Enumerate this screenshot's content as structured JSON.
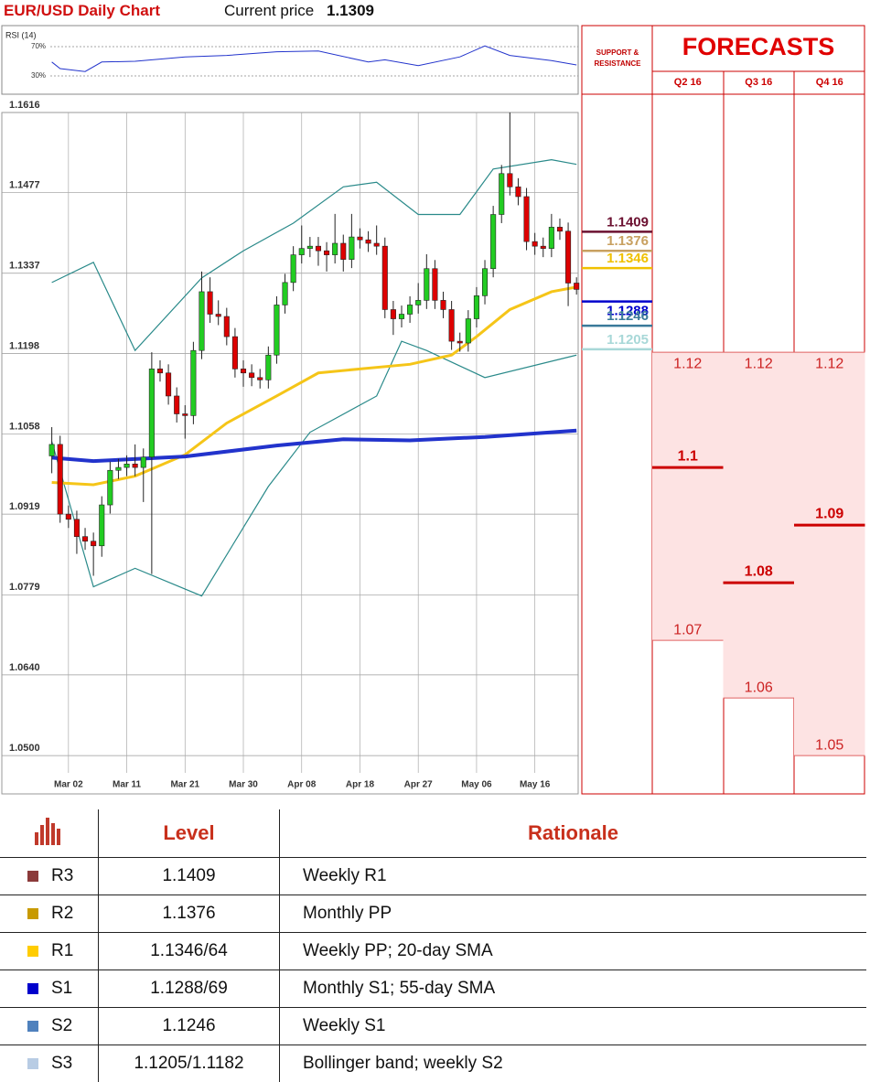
{
  "header": {
    "title": "EUR/USD Daily Chart",
    "price_label": "Current price",
    "price": 1.1309
  },
  "chart_data": [
    {
      "type": "candlestick",
      "xlim": [
        -6,
        63.2
      ],
      "ylim": [
        1.047,
        1.1616
      ],
      "xticks": [
        {
          "value": 2,
          "label": "Mar 02"
        },
        {
          "value": 9,
          "label": "Mar 11"
        },
        {
          "value": 16,
          "label": "Mar 21"
        },
        {
          "value": 23,
          "label": "Mar 30"
        },
        {
          "value": 30,
          "label": "Apr 08"
        },
        {
          "value": 37,
          "label": "Apr 18"
        },
        {
          "value": 44,
          "label": "Apr 27"
        },
        {
          "value": 51,
          "label": "May 06"
        },
        {
          "value": 58,
          "label": "May 16"
        }
      ],
      "yticks": [
        1.1616,
        1.1477,
        1.1337,
        1.1198,
        1.1058,
        1.0919,
        1.0779,
        {
          "value": 1.064,
          "label": "1.0640"
        },
        {
          "value": 1.05,
          "label": "1.0500"
        }
      ],
      "grid": true,
      "up_color": "#22cc22",
      "down_color": "#dd0000",
      "open": [
        1.102,
        1.104,
        1.0919,
        1.091,
        1.088,
        1.0872,
        1.0864,
        1.0935,
        1.0995,
        1.1,
        1.1006,
        1.1,
        1.1018,
        1.1171,
        1.1164,
        1.1124,
        1.1093,
        1.109,
        1.1203,
        1.1305,
        1.1266,
        1.1262,
        1.1227,
        1.1171,
        1.1164,
        1.1156,
        1.1152,
        1.1195,
        1.1282,
        1.1321,
        1.1369,
        1.138,
        1.1384,
        1.1376,
        1.1369,
        1.1389,
        1.1361,
        1.14,
        1.1395,
        1.1389,
        1.1384,
        1.1274,
        1.1258,
        1.1266,
        1.1282,
        1.129,
        1.1345,
        1.129,
        1.1274,
        1.1219,
        1.1216,
        1.1258,
        1.1298,
        1.1345,
        1.1439,
        1.151,
        1.1487,
        1.147,
        1.1392,
        1.1384,
        1.138,
        1.1417,
        1.141,
        1.132
      ],
      "close": [
        1.104,
        1.0919,
        1.091,
        1.088,
        1.0872,
        1.0864,
        1.0935,
        1.0995,
        1.1,
        1.1006,
        1.1,
        1.1018,
        1.1171,
        1.1164,
        1.1124,
        1.1093,
        1.109,
        1.1203,
        1.1305,
        1.1266,
        1.1262,
        1.1227,
        1.1171,
        1.1164,
        1.1156,
        1.1152,
        1.1195,
        1.1282,
        1.1321,
        1.1369,
        1.138,
        1.1384,
        1.1376,
        1.1369,
        1.1389,
        1.1361,
        1.14,
        1.1395,
        1.1389,
        1.1384,
        1.1274,
        1.1258,
        1.1266,
        1.1282,
        1.129,
        1.1345,
        1.129,
        1.1274,
        1.1219,
        1.1216,
        1.1258,
        1.1298,
        1.1345,
        1.1439,
        1.151,
        1.1487,
        1.147,
        1.1392,
        1.1384,
        1.138,
        1.1417,
        1.141,
        1.132,
        1.1309
      ],
      "high": [
        1.107,
        1.1055,
        1.0934,
        1.0925,
        1.0895,
        1.0887,
        1.095,
        1.101,
        1.1015,
        1.1021,
        1.104,
        1.1033,
        1.12,
        1.1186,
        1.1179,
        1.1139,
        1.1108,
        1.1218,
        1.134,
        1.133,
        1.129,
        1.1277,
        1.1242,
        1.1186,
        1.1179,
        1.1171,
        1.121,
        1.1297,
        1.1336,
        1.1384,
        1.142,
        1.14,
        1.14,
        1.1391,
        1.144,
        1.1404,
        1.144,
        1.1415,
        1.141,
        1.142,
        1.1399,
        1.1289,
        1.1281,
        1.1297,
        1.132,
        1.137,
        1.136,
        1.1305,
        1.1289,
        1.1234,
        1.1273,
        1.1313,
        1.136,
        1.1454,
        1.1525,
        1.1616,
        1.1502,
        1.1485,
        1.1407,
        1.1399,
        1.144,
        1.1432,
        1.1425,
        1.133
      ],
      "low": [
        1.099,
        1.0904,
        1.0895,
        1.085,
        1.0857,
        1.0812,
        1.0845,
        1.092,
        1.098,
        1.0985,
        1.0985,
        1.094,
        1.0815,
        1.1149,
        1.1109,
        1.1078,
        1.105,
        1.1075,
        1.1188,
        1.1251,
        1.1247,
        1.1212,
        1.1156,
        1.114,
        1.1141,
        1.1137,
        1.1137,
        1.118,
        1.1267,
        1.1306,
        1.1354,
        1.1365,
        1.135,
        1.134,
        1.1354,
        1.134,
        1.1346,
        1.138,
        1.1374,
        1.1369,
        1.1259,
        1.123,
        1.1243,
        1.1251,
        1.1267,
        1.1275,
        1.1275,
        1.1259,
        1.1204,
        1.1201,
        1.1201,
        1.1243,
        1.1283,
        1.133,
        1.1424,
        1.1472,
        1.1455,
        1.1377,
        1.1369,
        1.1365,
        1.1365,
        1.1395,
        1.128,
        1.13
      ],
      "lines": [
        {
          "color": "#2a8a8a",
          "width": 1.2,
          "x": [
            0,
            5,
            10,
            18,
            23,
            29,
            35,
            39,
            44,
            49,
            53,
            60,
            63
          ],
          "values": [
            1.1321,
            1.1356,
            1.1203,
            1.1329,
            1.1376,
            1.1424,
            1.1487,
            1.1495,
            1.1439,
            1.1439,
            1.1518,
            1.1534,
            1.1526
          ]
        },
        {
          "color": "#2a8a8a",
          "width": 1.2,
          "x": [
            0,
            5,
            10,
            18,
            26,
            31,
            39,
            42,
            45,
            52,
            63
          ],
          "values": [
            1.1045,
            1.0793,
            1.0825,
            1.0777,
            1.0967,
            1.1061,
            1.1124,
            1.1219,
            1.1203,
            1.1156,
            1.1195
          ]
        },
        {
          "color": "#f5c518",
          "width": 3,
          "x": [
            0,
            5,
            10,
            16,
            21,
            27,
            32,
            37,
            43,
            48,
            51,
            55,
            60,
            63
          ],
          "values": [
            1.0974,
            1.097,
            1.0985,
            1.1022,
            1.1077,
            1.1124,
            1.1164,
            1.1171,
            1.1179,
            1.1195,
            1.1227,
            1.1274,
            1.1305,
            1.1313
          ]
        },
        {
          "color": "#2233cc",
          "width": 4,
          "x": [
            0,
            5,
            16,
            27,
            35,
            43,
            52,
            63
          ],
          "values": [
            1.1017,
            1.1011,
            1.1019,
            1.1038,
            1.1049,
            1.1047,
            1.1053,
            1.1064
          ]
        }
      ]
    },
    {
      "type": "line",
      "title": "RSI (14)",
      "xlim": [
        -6,
        63.2
      ],
      "ylim": [
        5,
        95
      ],
      "yticks": [
        {
          "value": 70,
          "label": "70%"
        },
        {
          "value": 30,
          "label": "30%"
        }
      ],
      "color": "#2233cc",
      "x": [
        0,
        1,
        4,
        6,
        10,
        16,
        21,
        27,
        32,
        38,
        40,
        44,
        49,
        52,
        55,
        60,
        63
      ],
      "values": [
        49,
        40,
        36,
        49,
        50,
        56,
        58,
        63,
        64,
        49,
        52,
        44,
        56,
        71,
        58,
        51,
        45
      ]
    }
  ],
  "support_resistance": {
    "title": "SUPPORT & RESISTANCE",
    "levels": [
      {
        "value": 1.1409,
        "color": "#6b1030"
      },
      {
        "value": 1.1376,
        "color": "#c8a060"
      },
      {
        "value": 1.1346,
        "color": "#f0c000"
      },
      {
        "value": 1.1288,
        "color": "#0000cc"
      },
      {
        "value": 1.1246,
        "color": "#3a7a9a"
      },
      {
        "value": 1.1205,
        "color": "#a8d8d8"
      }
    ]
  },
  "forecasts": {
    "title": "FORECASTS",
    "quarters": [
      {
        "name": "Q2 16",
        "values": [
          1.12,
          1.1,
          1.07
        ]
      },
      {
        "name": "Q3 16",
        "values": [
          1.12,
          1.08,
          1.06
        ]
      },
      {
        "name": "Q4 16",
        "values": [
          1.12,
          1.09,
          1.05
        ]
      }
    ]
  },
  "table": {
    "header": [
      "Level",
      "Rationale"
    ],
    "rows": [
      {
        "code": "R3",
        "color": "#8b3a3a",
        "level": "1.1409",
        "rationale": "Weekly R1"
      },
      {
        "code": "R2",
        "color": "#c89a00",
        "level": "1.1376",
        "rationale": "Monthly PP"
      },
      {
        "code": "R1",
        "color": "#ffcc00",
        "level": "1.1346/64",
        "rationale": "Weekly PP; 20-day SMA"
      },
      {
        "code": "S1",
        "color": "#0000cc",
        "level": "1.1288/69",
        "rationale": "Monthly S1; 55-day SMA"
      },
      {
        "code": "S2",
        "color": "#4f81bd",
        "level": "1.1246",
        "rationale": "Weekly S1"
      },
      {
        "code": "S3",
        "color": "#b8cce4",
        "level": "1.1205/1.1182",
        "rationale": "Bollinger band; weekly S2"
      }
    ]
  }
}
